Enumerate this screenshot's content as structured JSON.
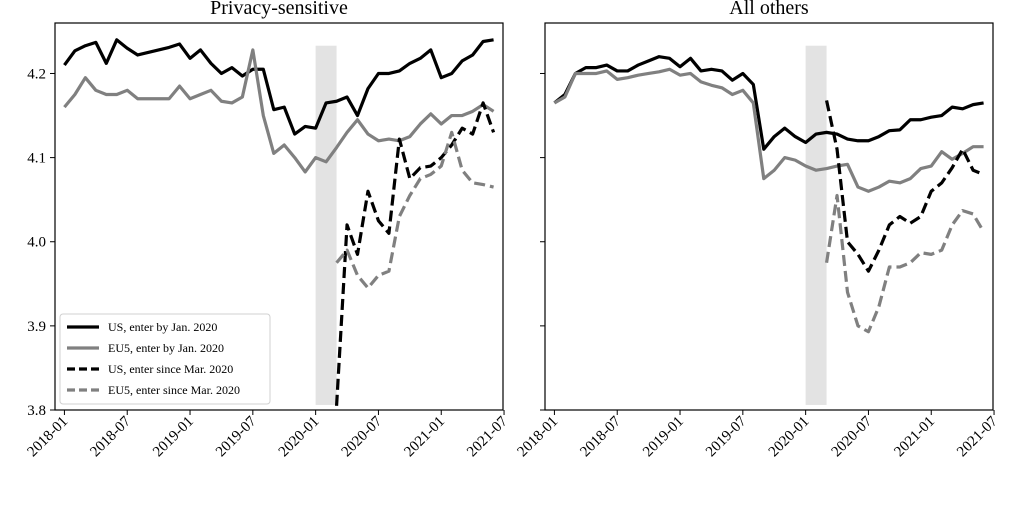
{
  "chart_data": [
    {
      "type": "line",
      "title": "Privacy-sensitive",
      "xlabel": "",
      "ylabel": "",
      "ylim": [
        3.8,
        4.26
      ],
      "xlim": [
        "2017-12",
        "2021-07"
      ],
      "yticks": [
        3.8,
        3.9,
        4.0,
        4.1,
        4.2
      ],
      "ytick_labels": [
        "3.8",
        "3.9",
        "4.0",
        "4.1",
        "4.2"
      ],
      "xticks": [
        "2018-01",
        "2018-07",
        "2019-01",
        "2019-07",
        "2020-01",
        "2020-07",
        "2021-01",
        "2021-07"
      ],
      "shaded_region": [
        "2020-01",
        "2020-03"
      ],
      "grid": false,
      "legend_position": "bottom-left",
      "series": [
        {
          "name": "US, enter by Jan. 2020",
          "color": "#000000",
          "style": "solid",
          "x": [
            "2018-01",
            "2018-02",
            "2018-03",
            "2018-04",
            "2018-05",
            "2018-06",
            "2018-07",
            "2018-08",
            "2018-09",
            "2018-10",
            "2018-11",
            "2018-12",
            "2019-01",
            "2019-02",
            "2019-03",
            "2019-04",
            "2019-05",
            "2019-06",
            "2019-07",
            "2019-08",
            "2019-09",
            "2019-10",
            "2019-11",
            "2019-12",
            "2020-01",
            "2020-02",
            "2020-03",
            "2020-04",
            "2020-05",
            "2020-06",
            "2020-07",
            "2020-08",
            "2020-09",
            "2020-10",
            "2020-11",
            "2020-12",
            "2021-01",
            "2021-02",
            "2021-03",
            "2021-04",
            "2021-05",
            "2021-06"
          ],
          "values": [
            4.21,
            4.227,
            4.233,
            4.237,
            4.212,
            4.24,
            4.23,
            4.222,
            4.225,
            4.228,
            4.231,
            4.235,
            4.218,
            4.228,
            4.212,
            4.2,
            4.207,
            4.197,
            4.205,
            4.205,
            4.157,
            4.16,
            4.128,
            4.137,
            4.135,
            4.165,
            4.167,
            4.172,
            4.15,
            4.182,
            4.2,
            4.2,
            4.203,
            4.212,
            4.218,
            4.228,
            4.195,
            4.2,
            4.215,
            4.222,
            4.238,
            4.24
          ]
        },
        {
          "name": "EU5, enter by Jan. 2020",
          "color": "#808080",
          "style": "solid",
          "x": [
            "2018-01",
            "2018-02",
            "2018-03",
            "2018-04",
            "2018-05",
            "2018-06",
            "2018-07",
            "2018-08",
            "2018-09",
            "2018-10",
            "2018-11",
            "2018-12",
            "2019-01",
            "2019-02",
            "2019-03",
            "2019-04",
            "2019-05",
            "2019-06",
            "2019-07",
            "2019-08",
            "2019-09",
            "2019-10",
            "2019-11",
            "2019-12",
            "2020-01",
            "2020-02",
            "2020-03",
            "2020-04",
            "2020-05",
            "2020-06",
            "2020-07",
            "2020-08",
            "2020-09",
            "2020-10",
            "2020-11",
            "2020-12",
            "2021-01",
            "2021-02",
            "2021-03",
            "2021-04",
            "2021-05",
            "2021-06"
          ],
          "values": [
            4.16,
            4.175,
            4.195,
            4.18,
            4.175,
            4.175,
            4.18,
            4.17,
            4.17,
            4.17,
            4.17,
            4.185,
            4.17,
            4.175,
            4.18,
            4.167,
            4.165,
            4.172,
            4.228,
            4.15,
            4.105,
            4.115,
            4.1,
            4.083,
            4.1,
            4.095,
            4.112,
            4.13,
            4.145,
            4.128,
            4.12,
            4.122,
            4.12,
            4.125,
            4.14,
            4.152,
            4.14,
            4.15,
            4.15,
            4.155,
            4.163,
            4.155
          ]
        },
        {
          "name": "US, enter since Mar. 2020",
          "color": "#000000",
          "style": "dashed",
          "x": [
            "2020-03",
            "2020-04",
            "2020-05",
            "2020-06",
            "2020-07",
            "2020-08",
            "2020-09",
            "2020-10",
            "2020-11",
            "2020-12",
            "2021-01",
            "2021-02",
            "2021-03",
            "2021-04",
            "2021-05",
            "2021-06"
          ],
          "values": [
            3.805,
            4.02,
            3.985,
            4.06,
            4.025,
            4.01,
            4.122,
            4.075,
            4.088,
            4.09,
            4.1,
            4.115,
            4.135,
            4.128,
            4.165,
            4.13
          ]
        },
        {
          "name": "EU5, enter since Mar. 2020",
          "color": "#808080",
          "style": "dashed",
          "x": [
            "2020-03",
            "2020-04",
            "2020-05",
            "2020-06",
            "2020-07",
            "2020-08",
            "2020-09",
            "2020-10",
            "2020-11",
            "2020-12",
            "2021-01",
            "2021-02",
            "2021-03",
            "2021-04",
            "2021-05",
            "2021-06"
          ],
          "values": [
            3.975,
            3.99,
            3.96,
            3.945,
            3.96,
            3.965,
            4.03,
            4.055,
            4.075,
            4.08,
            4.09,
            4.13,
            4.085,
            4.07,
            4.068,
            4.065
          ]
        }
      ]
    },
    {
      "type": "line",
      "title": "All others",
      "xlabel": "",
      "ylabel": "",
      "ylim": [
        3.8,
        4.26
      ],
      "xlim": [
        "2017-12",
        "2021-07"
      ],
      "yticks": [
        3.8,
        3.9,
        4.0,
        4.1,
        4.2
      ],
      "ytick_labels": [
        "",
        "",
        "",
        "",
        ""
      ],
      "xticks": [
        "2018-01",
        "2018-07",
        "2019-01",
        "2019-07",
        "2020-01",
        "2020-07",
        "2021-01",
        "2021-07"
      ],
      "shaded_region": [
        "2020-01",
        "2020-03"
      ],
      "grid": false,
      "series": [
        {
          "name": "US, enter by Jan. 2020",
          "color": "#000000",
          "style": "solid",
          "x": [
            "2018-01",
            "2018-02",
            "2018-03",
            "2018-04",
            "2018-05",
            "2018-06",
            "2018-07",
            "2018-08",
            "2018-09",
            "2018-10",
            "2018-11",
            "2018-12",
            "2019-01",
            "2019-02",
            "2019-03",
            "2019-04",
            "2019-05",
            "2019-06",
            "2019-07",
            "2019-08",
            "2019-09",
            "2019-10",
            "2019-11",
            "2019-12",
            "2020-01",
            "2020-02",
            "2020-03",
            "2020-04",
            "2020-05",
            "2020-06",
            "2020-07",
            "2020-08",
            "2020-09",
            "2020-10",
            "2020-11",
            "2020-12",
            "2021-01",
            "2021-02",
            "2021-03",
            "2021-04",
            "2021-05",
            "2021-06"
          ],
          "values": [
            4.165,
            4.175,
            4.2,
            4.207,
            4.207,
            4.21,
            4.203,
            4.203,
            4.21,
            4.215,
            4.22,
            4.218,
            4.208,
            4.218,
            4.203,
            4.205,
            4.203,
            4.192,
            4.2,
            4.187,
            4.11,
            4.125,
            4.135,
            4.125,
            4.118,
            4.128,
            4.13,
            4.128,
            4.122,
            4.12,
            4.12,
            4.125,
            4.132,
            4.133,
            4.145,
            4.145,
            4.148,
            4.15,
            4.16,
            4.158,
            4.163,
            4.165
          ]
        },
        {
          "name": "EU5, enter by Jan. 2020",
          "color": "#808080",
          "style": "solid",
          "x": [
            "2018-01",
            "2018-02",
            "2018-03",
            "2018-04",
            "2018-05",
            "2018-06",
            "2018-07",
            "2018-08",
            "2018-09",
            "2018-10",
            "2018-11",
            "2018-12",
            "2019-01",
            "2019-02",
            "2019-03",
            "2019-04",
            "2019-05",
            "2019-06",
            "2019-07",
            "2019-08",
            "2019-09",
            "2019-10",
            "2019-11",
            "2019-12",
            "2020-01",
            "2020-02",
            "2020-03",
            "2020-04",
            "2020-05",
            "2020-06",
            "2020-07",
            "2020-08",
            "2020-09",
            "2020-10",
            "2020-11",
            "2020-12",
            "2021-01",
            "2021-02",
            "2021-03",
            "2021-04",
            "2021-05",
            "2021-06"
          ],
          "values": [
            4.165,
            4.172,
            4.2,
            4.2,
            4.2,
            4.203,
            4.193,
            4.195,
            4.198,
            4.2,
            4.202,
            4.205,
            4.198,
            4.2,
            4.19,
            4.186,
            4.183,
            4.175,
            4.18,
            4.165,
            4.075,
            4.085,
            4.1,
            4.097,
            4.09,
            4.085,
            4.087,
            4.09,
            4.092,
            4.065,
            4.06,
            4.065,
            4.072,
            4.07,
            4.075,
            4.087,
            4.09,
            4.107,
            4.098,
            4.105,
            4.113,
            4.113
          ]
        },
        {
          "name": "US, enter since Mar. 2020",
          "color": "#000000",
          "style": "dashed",
          "x": [
            "2020-03",
            "2020-04",
            "2020-05",
            "2020-06",
            "2020-07",
            "2020-08",
            "2020-09",
            "2020-10",
            "2020-11",
            "2020-12",
            "2021-01",
            "2021-02",
            "2021-03",
            "2021-04",
            "2021-05",
            "2021-06"
          ],
          "values": [
            4.168,
            4.11,
            4.0,
            3.985,
            3.965,
            3.99,
            4.02,
            4.03,
            4.022,
            4.03,
            4.06,
            4.07,
            4.088,
            4.11,
            4.085,
            4.08
          ]
        },
        {
          "name": "EU5, enter since Mar. 2020",
          "color": "#808080",
          "style": "dashed",
          "x": [
            "2020-03",
            "2020-04",
            "2020-05",
            "2020-06",
            "2020-07",
            "2020-08",
            "2020-09",
            "2020-10",
            "2020-11",
            "2020-12",
            "2021-01",
            "2021-02",
            "2021-03",
            "2021-04",
            "2021-05",
            "2021-06"
          ],
          "values": [
            3.975,
            4.055,
            3.94,
            3.9,
            3.893,
            3.923,
            3.97,
            3.97,
            3.975,
            3.987,
            3.985,
            3.99,
            4.02,
            4.037,
            4.033,
            4.012
          ]
        }
      ]
    }
  ]
}
